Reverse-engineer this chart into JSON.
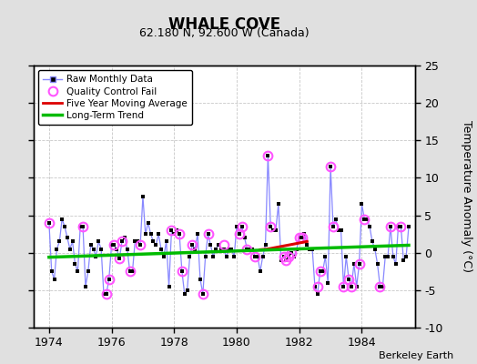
{
  "title": "WHALE COVE",
  "subtitle": "62.180 N, 92.600 W (Canada)",
  "credit": "Berkeley Earth",
  "ylabel": "Temperature Anomaly (°C)",
  "xlim": [
    1973.5,
    1985.7
  ],
  "ylim": [
    -10,
    25
  ],
  "yticks": [
    -10,
    -5,
    0,
    5,
    10,
    15,
    20,
    25
  ],
  "xticks": [
    1974,
    1976,
    1978,
    1980,
    1982,
    1984
  ],
  "background_color": "#e0e0e0",
  "plot_bg_color": "#ffffff",
  "raw_x": [
    1974.0,
    1974.083,
    1974.167,
    1974.25,
    1974.333,
    1974.417,
    1974.5,
    1974.583,
    1974.667,
    1974.75,
    1974.833,
    1974.917,
    1975.0,
    1975.083,
    1975.167,
    1975.25,
    1975.333,
    1975.417,
    1975.5,
    1975.583,
    1975.667,
    1975.75,
    1975.833,
    1975.917,
    1976.0,
    1976.083,
    1976.167,
    1976.25,
    1976.333,
    1976.417,
    1976.5,
    1976.583,
    1976.667,
    1976.75,
    1976.833,
    1976.917,
    1977.0,
    1977.083,
    1977.167,
    1977.25,
    1977.333,
    1977.417,
    1977.5,
    1977.583,
    1977.667,
    1977.75,
    1977.833,
    1977.917,
    1978.0,
    1978.083,
    1978.167,
    1978.25,
    1978.333,
    1978.417,
    1978.5,
    1978.583,
    1978.667,
    1978.75,
    1978.833,
    1978.917,
    1979.0,
    1979.083,
    1979.167,
    1979.25,
    1979.333,
    1979.417,
    1979.5,
    1979.583,
    1979.667,
    1979.75,
    1979.833,
    1979.917,
    1980.0,
    1980.083,
    1980.167,
    1980.25,
    1980.333,
    1980.417,
    1980.5,
    1980.583,
    1980.667,
    1980.75,
    1980.833,
    1980.917,
    1981.0,
    1981.083,
    1981.167,
    1981.25,
    1981.333,
    1981.417,
    1981.5,
    1981.583,
    1981.667,
    1981.75,
    1981.833,
    1981.917,
    1982.0,
    1982.083,
    1982.167,
    1982.25,
    1982.333,
    1982.417,
    1982.5,
    1982.583,
    1982.667,
    1982.75,
    1982.833,
    1982.917,
    1983.0,
    1983.083,
    1983.167,
    1983.25,
    1983.333,
    1983.417,
    1983.5,
    1983.583,
    1983.667,
    1983.75,
    1983.833,
    1983.917,
    1984.0,
    1984.083,
    1984.167,
    1984.25,
    1984.333,
    1984.417,
    1984.5,
    1984.583,
    1984.667,
    1984.75,
    1984.833,
    1984.917,
    1985.0,
    1985.083,
    1985.167,
    1985.25,
    1985.333,
    1985.417,
    1985.5
  ],
  "raw_y": [
    4.0,
    -2.5,
    -3.5,
    0.5,
    1.5,
    4.5,
    3.5,
    2.0,
    0.5,
    1.5,
    -1.5,
    -2.5,
    3.5,
    3.5,
    -4.5,
    -2.5,
    1.0,
    0.5,
    -0.5,
    1.5,
    0.5,
    -5.5,
    -5.5,
    -3.5,
    1.0,
    1.0,
    0.5,
    -0.8,
    1.5,
    2.0,
    0.5,
    -2.5,
    -2.5,
    1.5,
    1.5,
    1.0,
    7.5,
    2.5,
    4.0,
    2.5,
    1.5,
    1.0,
    2.5,
    0.5,
    -0.5,
    1.5,
    -4.5,
    3.0,
    2.5,
    3.0,
    2.5,
    -2.5,
    -5.5,
    -5.0,
    -0.5,
    1.0,
    0.5,
    2.5,
    -3.5,
    -5.5,
    -0.5,
    2.5,
    1.0,
    -0.5,
    0.5,
    1.0,
    0.5,
    0.5,
    -0.5,
    0.5,
    0.5,
    -0.5,
    3.5,
    2.5,
    3.5,
    2.0,
    0.5,
    0.5,
    0.5,
    -0.5,
    -0.5,
    -2.5,
    -0.5,
    1.0,
    13.0,
    3.5,
    3.0,
    3.0,
    6.5,
    -1.0,
    -0.5,
    -1.0,
    -0.5,
    0.0,
    -0.5,
    0.5,
    2.0,
    2.0,
    2.5,
    1.0,
    0.5,
    0.5,
    -4.5,
    -5.5,
    -2.5,
    -2.5,
    -0.5,
    -4.0,
    11.5,
    3.5,
    4.5,
    3.0,
    3.0,
    -4.5,
    -0.5,
    -3.5,
    -4.5,
    -1.5,
    -4.5,
    -1.5,
    6.5,
    4.5,
    4.5,
    3.5,
    1.5,
    0.5,
    -1.5,
    -4.5,
    -4.5,
    -0.5,
    -0.5,
    3.5,
    -0.5,
    -1.5,
    3.5,
    3.5,
    -1.0,
    -0.5,
    3.5
  ],
  "qc_fail_x": [
    1974.0,
    1975.083,
    1975.833,
    1975.917,
    1976.083,
    1976.25,
    1976.333,
    1976.583,
    1976.917,
    1977.917,
    1978.167,
    1978.25,
    1978.583,
    1978.917,
    1979.083,
    1979.583,
    1980.083,
    1980.167,
    1980.333,
    1980.583,
    1981.0,
    1981.083,
    1981.5,
    1981.583,
    1981.667,
    1981.75,
    1982.0,
    1982.083,
    1982.583,
    1982.667,
    1983.0,
    1983.083,
    1983.417,
    1983.583,
    1983.667,
    1983.917,
    1984.083,
    1984.583,
    1984.917,
    1985.25
  ],
  "qc_fail_y": [
    4.0,
    3.5,
    -5.5,
    -3.5,
    1.0,
    -0.8,
    1.5,
    -2.5,
    1.0,
    3.0,
    2.5,
    -2.5,
    1.0,
    -5.5,
    2.5,
    1.0,
    2.5,
    3.5,
    0.5,
    -0.5,
    13.0,
    3.5,
    -0.5,
    -1.0,
    -0.5,
    0.0,
    2.0,
    2.0,
    -4.5,
    -2.5,
    11.5,
    3.5,
    -4.5,
    -3.5,
    -4.5,
    -1.5,
    4.5,
    -4.5,
    3.5,
    3.5
  ],
  "moving_avg_x": [
    1980.75,
    1981.0,
    1981.25,
    1981.5,
    1981.75,
    1982.0,
    1982.25
  ],
  "moving_avg_y": [
    0.4,
    0.5,
    0.7,
    0.9,
    1.1,
    1.3,
    1.5
  ],
  "trend_x": [
    1974.0,
    1985.5
  ],
  "trend_y": [
    -0.6,
    1.0
  ],
  "line_color": "#8888ff",
  "dot_color": "#000000",
  "qc_color": "#ff55ff",
  "ma_color": "#dd0000",
  "trend_color": "#00bb00",
  "grid_color": "#c8c8c8"
}
